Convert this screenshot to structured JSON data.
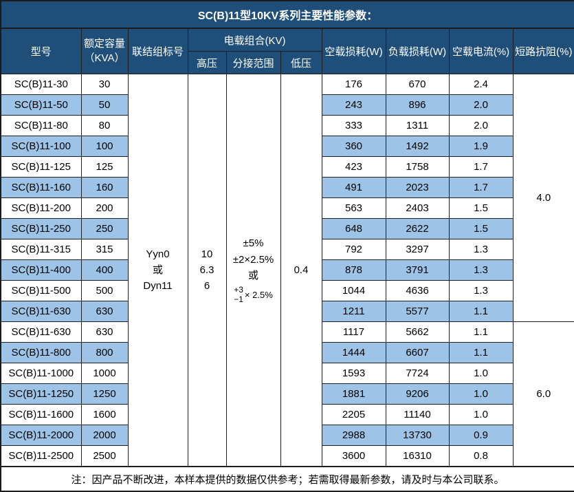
{
  "title": "SC(B)11型10KV系列主要性能参数：",
  "colors": {
    "header_bg": "#1F4E79",
    "header_text": "#FFFFFF",
    "row_alt_bg": "#9DC3E6",
    "row_bg": "#FFFFFF",
    "border": "#1C1C1C",
    "body_text": "#000000"
  },
  "header": {
    "model": "型号",
    "capacity_line1": "额定容量",
    "capacity_line2": "（KVA）",
    "connection": "联结组标号",
    "voltage_group": "电载组合(KV)",
    "high_voltage": "高压",
    "tap_range": "分接范围",
    "low_voltage": "低压",
    "no_load_loss": "空载损耗(W)",
    "load_loss": "负载损耗(W)",
    "no_load_current": "空载电流(%)",
    "impedance": "短路抗阻(%)"
  },
  "merged": {
    "connection_lines": [
      "Yyn0",
      "或",
      "Dyn11"
    ],
    "high_voltage_lines": [
      "10",
      "6.3",
      "6"
    ],
    "tap_range_lines": [
      "±5%",
      "±2×2.5%",
      "或"
    ],
    "tap_range_frac_top": "+3",
    "tap_range_frac_bottom": "−1",
    "tap_range_frac_suffix": "× 2.5%",
    "low_voltage": "0.4",
    "impedance_group1": "4.0",
    "impedance_group1_rows": 12,
    "impedance_group2": "6.0",
    "impedance_group2_rows": 7,
    "span_rows": 19
  },
  "rows": [
    {
      "model": "SC(B)11-30",
      "capacity": "30",
      "no_load_loss": "176",
      "load_loss": "670",
      "no_load_current": "2.4"
    },
    {
      "model": "SC(B)11-50",
      "capacity": "50",
      "no_load_loss": "243",
      "load_loss": "896",
      "no_load_current": "2.0"
    },
    {
      "model": "SC(B)11-80",
      "capacity": "80",
      "no_load_loss": "333",
      "load_loss": "1311",
      "no_load_current": "2.0"
    },
    {
      "model": "SC(B)11-100",
      "capacity": "100",
      "no_load_loss": "360",
      "load_loss": "1492",
      "no_load_current": "1.9"
    },
    {
      "model": "SC(B)11-125",
      "capacity": "125",
      "no_load_loss": "423",
      "load_loss": "1758",
      "no_load_current": "1.7"
    },
    {
      "model": "SC(B)11-160",
      "capacity": "160",
      "no_load_loss": "491",
      "load_loss": "2023",
      "no_load_current": "1.7"
    },
    {
      "model": "SC(B)11-200",
      "capacity": "200",
      "no_load_loss": "563",
      "load_loss": "2403",
      "no_load_current": "1.5"
    },
    {
      "model": "SC(B)11-250",
      "capacity": "250",
      "no_load_loss": "648",
      "load_loss": "2622",
      "no_load_current": "1.5"
    },
    {
      "model": "SC(B)11-315",
      "capacity": "315",
      "no_load_loss": "792",
      "load_loss": "3297",
      "no_load_current": "1.3"
    },
    {
      "model": "SC(B)11-400",
      "capacity": "400",
      "no_load_loss": "878",
      "load_loss": "3791",
      "no_load_current": "1.3"
    },
    {
      "model": "SC(B)11-500",
      "capacity": "500",
      "no_load_loss": "1044",
      "load_loss": "4636",
      "no_load_current": "1.3"
    },
    {
      "model": "SC(B)11-630",
      "capacity": "630",
      "no_load_loss": "1211",
      "load_loss": "5577",
      "no_load_current": "1.1"
    },
    {
      "model": "SC(B)11-630",
      "capacity": "630",
      "no_load_loss": "1117",
      "load_loss": "5662",
      "no_load_current": "1.1"
    },
    {
      "model": "SC(B)11-800",
      "capacity": "800",
      "no_load_loss": "1444",
      "load_loss": "6607",
      "no_load_current": "1.1"
    },
    {
      "model": "SC(B)11-1000",
      "capacity": "1000",
      "no_load_loss": "1593",
      "load_loss": "7724",
      "no_load_current": "1.0"
    },
    {
      "model": "SC(B)11-1250",
      "capacity": "1250",
      "no_load_loss": "1881",
      "load_loss": "9206",
      "no_load_current": "1.0"
    },
    {
      "model": "SC(B)11-1600",
      "capacity": "1600",
      "no_load_loss": "2205",
      "load_loss": "11140",
      "no_load_current": "1.0"
    },
    {
      "model": "SC(B)11-2000",
      "capacity": "2000",
      "no_load_loss": "2988",
      "load_loss": "13730",
      "no_load_current": "0.9"
    },
    {
      "model": "SC(B)11-2500",
      "capacity": "2500",
      "no_load_loss": "3600",
      "load_loss": "16310",
      "no_load_current": "0.8"
    }
  ],
  "footer": "注：因产品不断改进，本样本提供的数据仅供参考；若需取得最新参数，请及时与本公司联系。"
}
